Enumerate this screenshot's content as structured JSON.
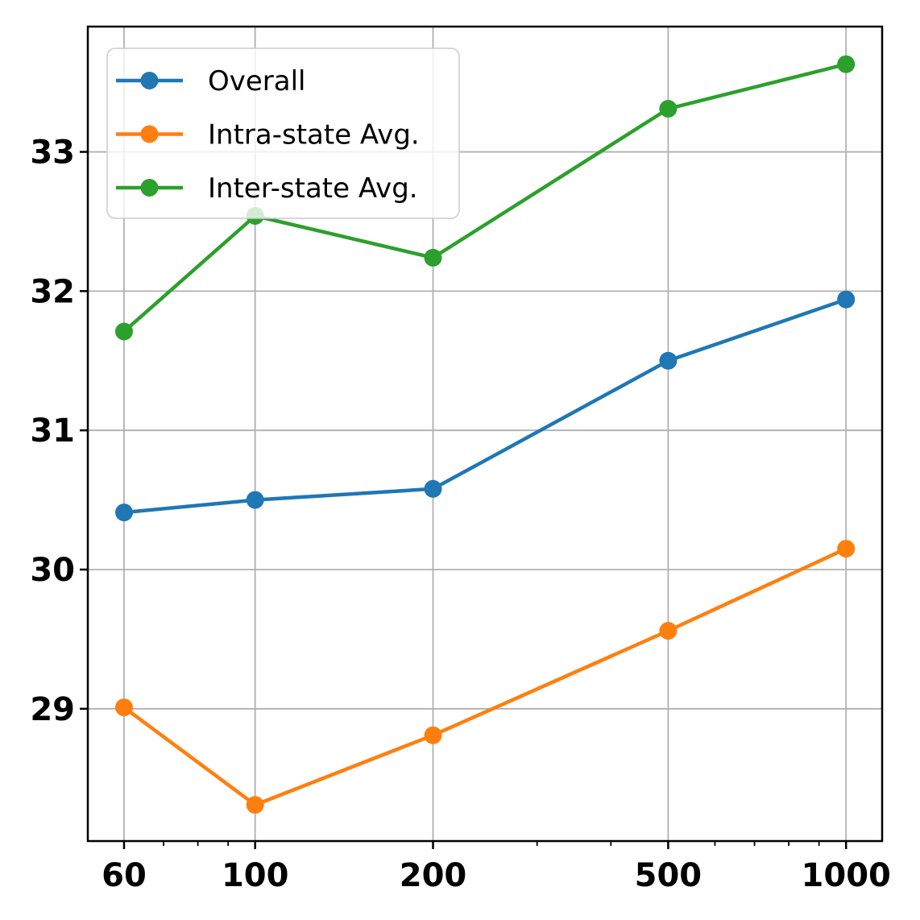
{
  "chart_data": {
    "type": "line",
    "title": "",
    "xlabel": "",
    "ylabel": "",
    "x_scale": "log",
    "x": [
      60,
      100,
      200,
      500,
      1000
    ],
    "series": [
      {
        "name": "Overall",
        "color": "#1f77b4",
        "values": [
          30.41,
          30.5,
          30.58,
          31.5,
          31.94
        ]
      },
      {
        "name": "Intra-state Avg.",
        "color": "#ff7f0e",
        "values": [
          29.01,
          28.31,
          28.81,
          29.56,
          30.15
        ]
      },
      {
        "name": "Inter-state Avg.",
        "color": "#2ca02c",
        "values": [
          31.71,
          32.54,
          32.24,
          33.31,
          33.63
        ]
      }
    ],
    "xticks": [
      60,
      100,
      200,
      500,
      1000
    ],
    "xtick_labels": [
      "60",
      "100",
      "200",
      "500",
      "1000"
    ],
    "x_minor_ticks": [
      70,
      80,
      90,
      300,
      400,
      600,
      700,
      800,
      900
    ],
    "yticks": [
      29,
      30,
      31,
      32,
      33
    ],
    "ytick_labels": [
      "29",
      "30",
      "31",
      "32",
      "33"
    ],
    "xlim": [
      52.1,
      1151
    ],
    "ylim": [
      28.05,
      33.9
    ],
    "grid": true,
    "legend_position": "upper-left",
    "marker": "circle"
  },
  "styles": {
    "grid_color": "#b0b0b0",
    "spine_color": "#000000",
    "legend_background": "rgba(255,255,255,0.8)",
    "legend_border": "#cccccc",
    "series_colors": {
      "overall": "#1f77b4",
      "intra_state": "#ff7f0e",
      "inter_state": "#2ca02c"
    }
  }
}
